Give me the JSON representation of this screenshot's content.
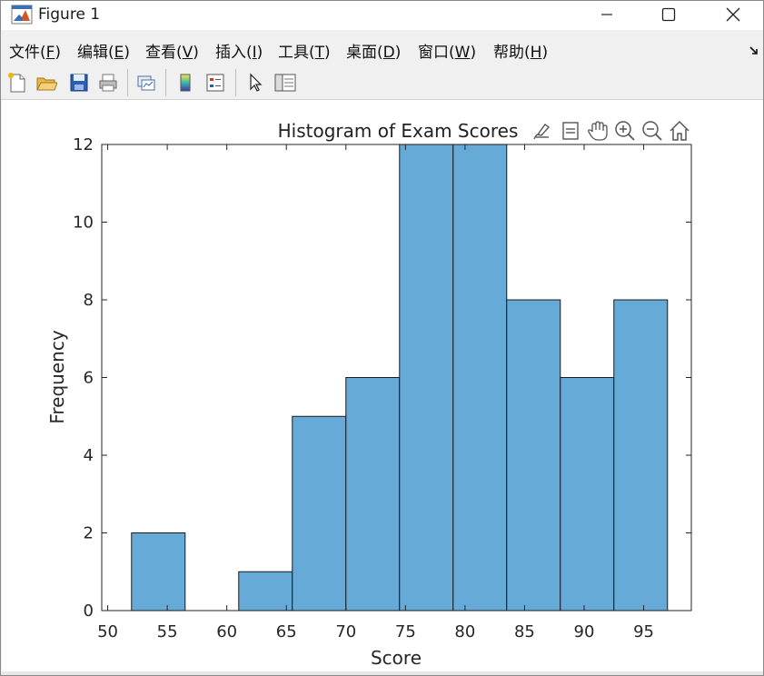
{
  "window": {
    "title": "Figure 1"
  },
  "menubar": {
    "items": [
      {
        "label": "文件(",
        "key": "F",
        "end": ")"
      },
      {
        "label": "编辑(",
        "key": "E",
        "end": ")"
      },
      {
        "label": "查看(",
        "key": "V",
        "end": ")"
      },
      {
        "label": "插入(",
        "key": "I",
        "end": ")"
      },
      {
        "label": "工具(",
        "key": "T",
        "end": ")"
      },
      {
        "label": "桌面(",
        "key": "D",
        "end": ")"
      },
      {
        "label": "窗口(",
        "key": "W",
        "end": ")"
      },
      {
        "label": "帮助(",
        "key": "H",
        "end": ")"
      }
    ]
  },
  "toolbar": {
    "buttons": [
      "new-figure-icon",
      "open-file-icon",
      "save-icon",
      "print-icon",
      "link-plot-icon",
      "insert-colorbar-icon",
      "insert-legend-icon",
      "edit-plot-pointer-icon",
      "property-inspector-icon"
    ]
  },
  "axes_toolbar": {
    "buttons": [
      "brush-data-icon",
      "data-tips-icon",
      "pan-hand-icon",
      "zoom-in-icon",
      "zoom-out-icon",
      "restore-view-home-icon"
    ]
  },
  "colors": {
    "bar_fill": "#66aad8",
    "bar_edge": "#1a1a1a",
    "axes": "#262626"
  },
  "chart_data": {
    "type": "bar",
    "title": "Histogram of Exam Scores",
    "xlabel": "Score",
    "ylabel": "Frequency",
    "xlim": [
      49.5,
      99
    ],
    "ylim": [
      0,
      12
    ],
    "xticks": [
      50,
      55,
      60,
      65,
      70,
      75,
      80,
      85,
      90,
      95
    ],
    "yticks": [
      0,
      2,
      4,
      6,
      8,
      10,
      12
    ],
    "bin_edges": [
      52,
      56.5,
      61,
      65.5,
      70,
      74.5,
      79,
      83.5,
      88,
      92.5,
      97
    ],
    "values": [
      2,
      0,
      1,
      5,
      6,
      12,
      12,
      8,
      6,
      8
    ],
    "grid": false
  }
}
